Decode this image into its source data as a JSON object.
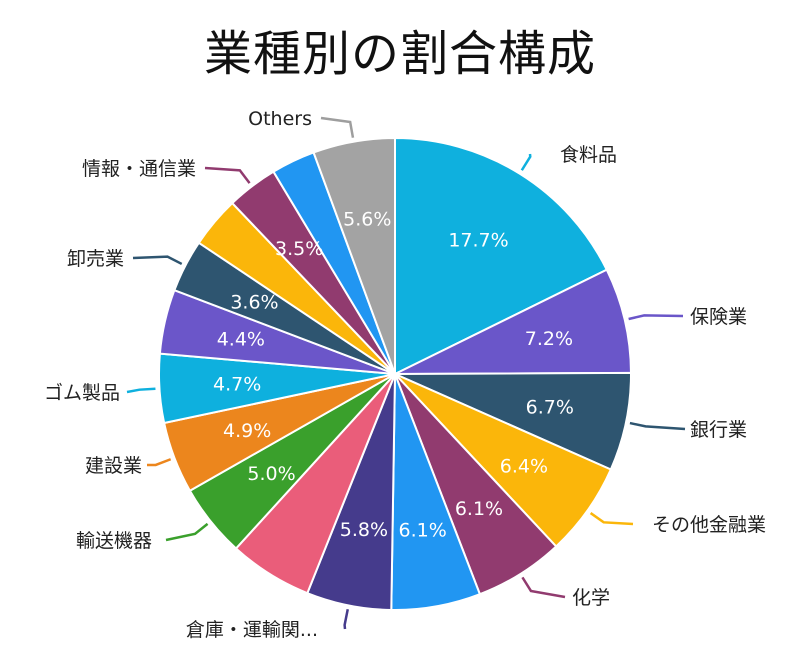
{
  "chart_data": {
    "type": "pie",
    "title": "業種別の割合構成",
    "unit": "%",
    "slices": [
      {
        "label": "食料品",
        "value": 17.7,
        "value_label": "17.7%",
        "color": "#0fb0de"
      },
      {
        "label": "保険業",
        "value": 7.2,
        "value_label": "7.2%",
        "color": "#6a56c9"
      },
      {
        "label": "銀行業",
        "value": 6.7,
        "value_label": "6.7%",
        "color": "#2e5570"
      },
      {
        "label": "その他金融業",
        "value": 6.4,
        "value_label": "6.4%",
        "color": "#fbb60a"
      },
      {
        "label": "化学",
        "value": 6.1,
        "value_label": "6.1%",
        "color": "#913b6f"
      },
      {
        "label": "",
        "value": 6.1,
        "value_label": "6.1%",
        "color": "#2196f2"
      },
      {
        "label": "倉庫・運輸関...",
        "value": 5.8,
        "value_label": "5.8%",
        "color": "#453b8c"
      },
      {
        "label": "",
        "value": 5.7,
        "value_label": "",
        "color": "#ea5d7a"
      },
      {
        "label": "輸送機器",
        "value": 5.0,
        "value_label": "5.0%",
        "color": "#3aa02c"
      },
      {
        "label": "建設業",
        "value": 4.9,
        "value_label": "4.9%",
        "color": "#ec861d"
      },
      {
        "label": "ゴム製品",
        "value": 4.7,
        "value_label": "4.7%",
        "color": "#0eb0de"
      },
      {
        "label": "",
        "value": 4.4,
        "value_label": "4.4%",
        "color": "#6b56c9"
      },
      {
        "label": "卸売業",
        "value": 3.6,
        "value_label": "3.6%",
        "color": "#2e5570"
      },
      {
        "label": "",
        "value": 3.5,
        "value_label": "",
        "color": "#fbb60a"
      },
      {
        "label": "情報・通信業",
        "value": 3.5,
        "value_label": "3.5%",
        "color": "#913b6f"
      },
      {
        "label": "",
        "value": 3.0,
        "value_label": "",
        "color": "#2196f2"
      },
      {
        "label": "Others",
        "value": 5.6,
        "value_label": "5.6%",
        "color": "#a3a3a3"
      }
    ]
  }
}
